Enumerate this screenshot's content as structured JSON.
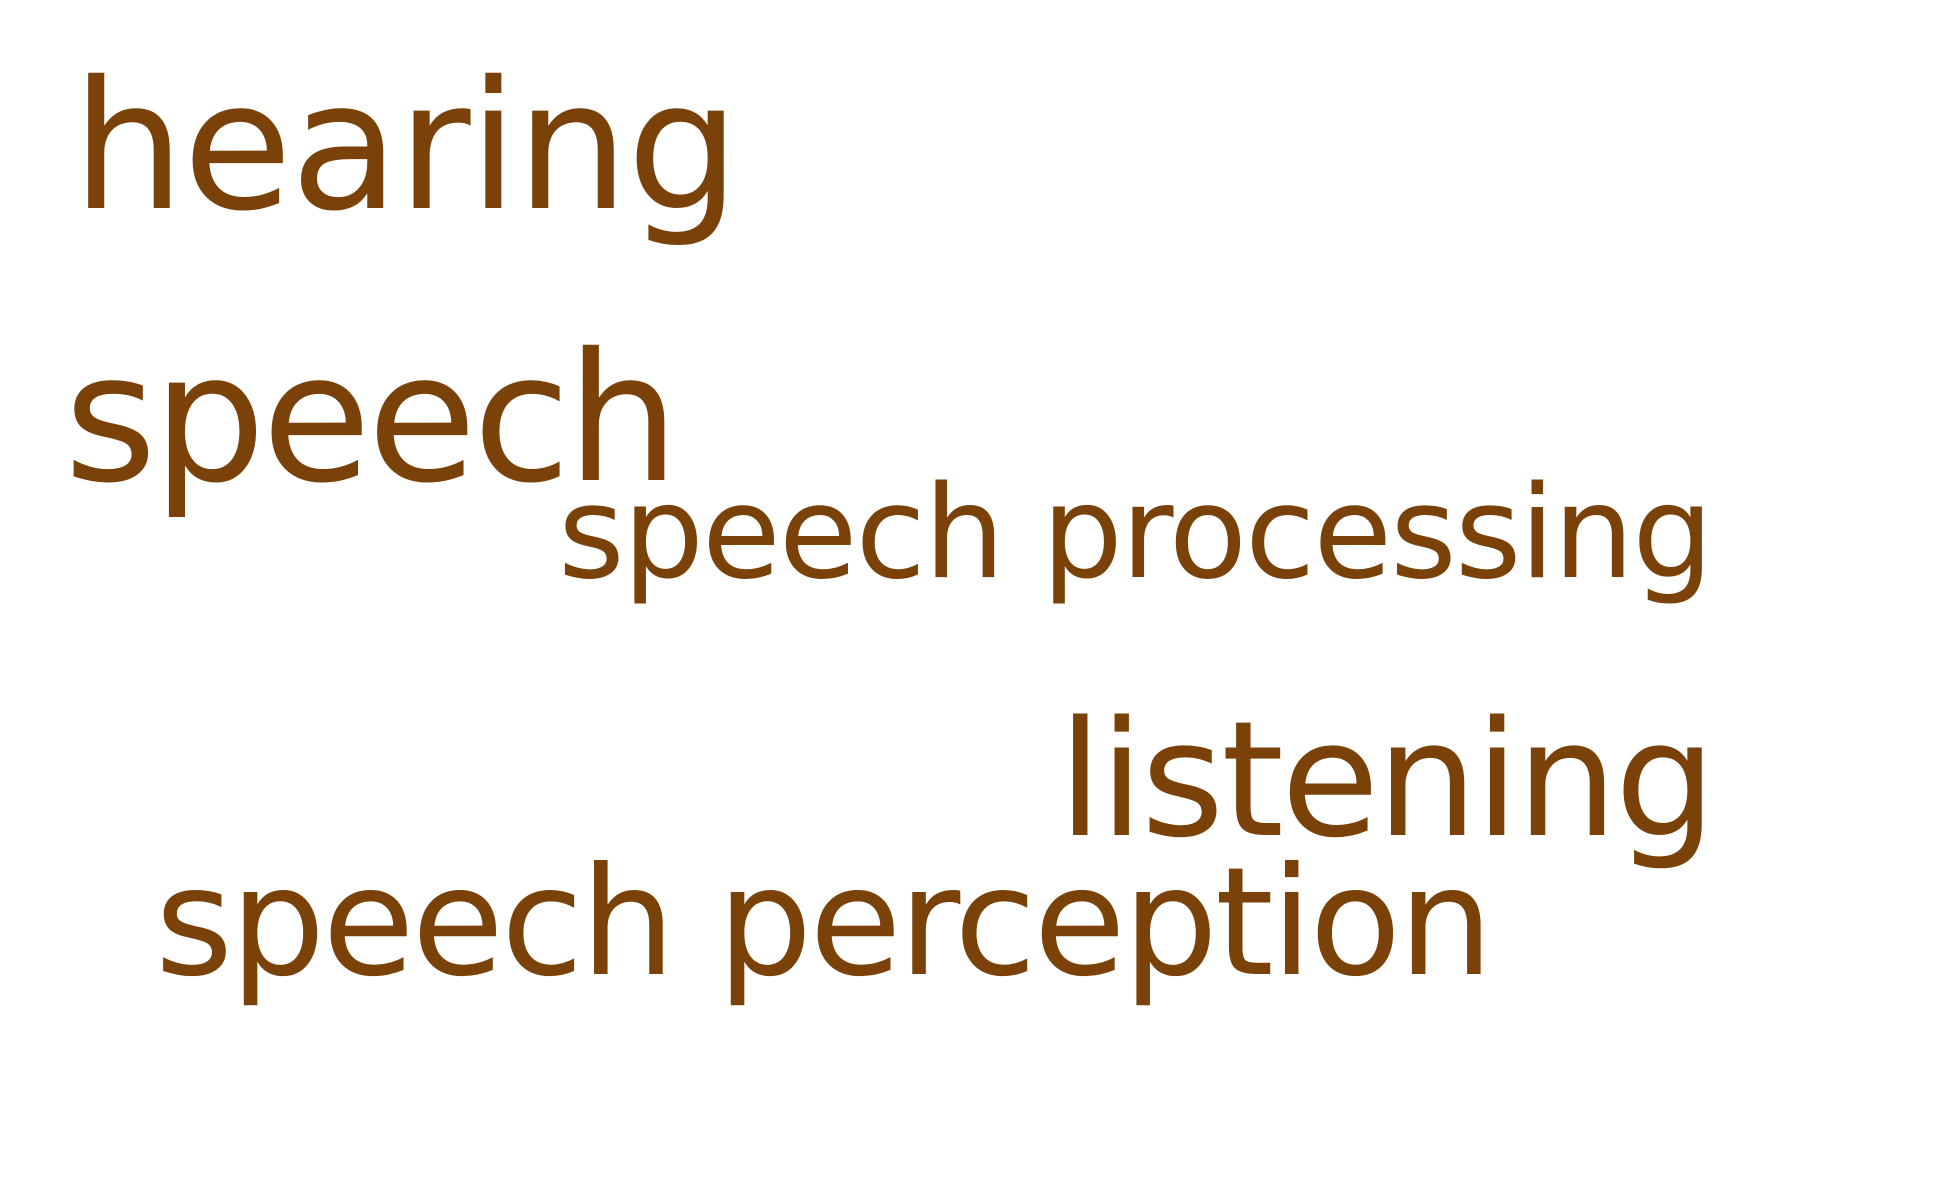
{
  "text_color": "#7a4209",
  "background_color": "#ffffff",
  "words": {
    "hearing": "hearing",
    "speech": "speech",
    "speech_processing": "speech processing",
    "listening": "listening",
    "speech_perception": "speech perception"
  }
}
